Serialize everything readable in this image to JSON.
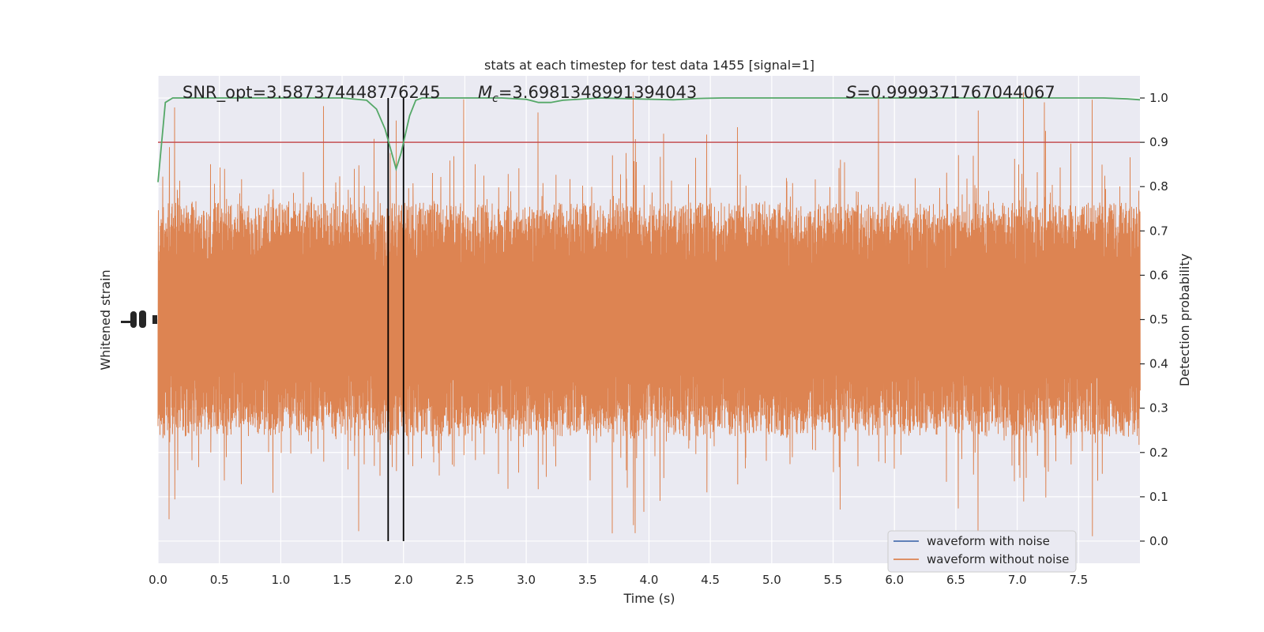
{
  "chart_data": {
    "type": "line",
    "title": "stats at each timestep for test data 1455 [signal=1]",
    "xlabel": "Time (s)",
    "ylabel_left": "Whitened strain",
    "ylabel_right": "Detection probability",
    "xlim": [
      0.0,
      8.0
    ],
    "ylim_right": [
      -0.05,
      1.05
    ],
    "x_ticks": [
      "0.0",
      "0.5",
      "1.0",
      "1.5",
      "2.0",
      "2.5",
      "3.0",
      "3.5",
      "4.0",
      "4.5",
      "5.0",
      "5.5",
      "6.0",
      "6.5",
      "7.0",
      "7.5"
    ],
    "x_tick_values": [
      0.0,
      0.5,
      1.0,
      1.5,
      2.0,
      2.5,
      3.0,
      3.5,
      4.0,
      4.5,
      5.0,
      5.5,
      6.0,
      6.5,
      7.0,
      7.5
    ],
    "y_right_ticks": [
      "0.0",
      "0.1",
      "0.2",
      "0.3",
      "0.4",
      "0.5",
      "0.6",
      "0.7",
      "0.8",
      "0.9",
      "1.0"
    ],
    "y_right_tick_values": [
      0.0,
      0.1,
      0.2,
      0.3,
      0.4,
      0.5,
      0.6,
      0.7,
      0.8,
      0.9,
      1.0
    ],
    "annotations": {
      "snr": "SNR_opt=3.587374448776245",
      "mc_symbol": "M",
      "mc_sub": "c",
      "mc_value": "=3.6981348991394043",
      "s_symbol": "S",
      "s_value": "=0.9999371767044067"
    },
    "threshold": 0.9,
    "vertical_lines_x": [
      1.875,
      2.0
    ],
    "detection_probability": {
      "name": "detection probability",
      "x": [
        0.0,
        0.06,
        0.12,
        0.25,
        0.5,
        1.0,
        1.5,
        1.7,
        1.78,
        1.85,
        1.9,
        1.94,
        1.98,
        2.05,
        2.1,
        2.15,
        2.25,
        2.5,
        2.8,
        3.0,
        3.1,
        3.2,
        3.3,
        3.6,
        3.9,
        4.2,
        4.4,
        4.6,
        5.0,
        5.5,
        6.0,
        6.5,
        7.0,
        7.5,
        7.7,
        7.9,
        8.0
      ],
      "y": [
        0.81,
        0.99,
        1.0,
        1.0,
        1.0,
        1.0,
        1.0,
        0.995,
        0.975,
        0.93,
        0.88,
        0.84,
        0.875,
        0.96,
        0.995,
        1.0,
        1.0,
        1.0,
        1.0,
        0.997,
        0.99,
        0.99,
        0.995,
        1.0,
        0.998,
        0.996,
        0.999,
        1.0,
        1.0,
        1.0,
        1.0,
        1.0,
        1.0,
        1.0,
        1.0,
        0.998,
        0.996
      ],
      "color": "#55a868"
    },
    "series": [
      {
        "name": "waveform with noise",
        "color": "#4c72b0"
      },
      {
        "name": "waveform without noise",
        "color": "#dd8452"
      }
    ],
    "colors": {
      "plot_background": "#eaeaf2",
      "grid": "#ffffff",
      "threshold": "#c44e52",
      "vertical_lines": "#000000",
      "strain": "#dd8452"
    },
    "legend_placement": "lower-right",
    "grid": true
  }
}
